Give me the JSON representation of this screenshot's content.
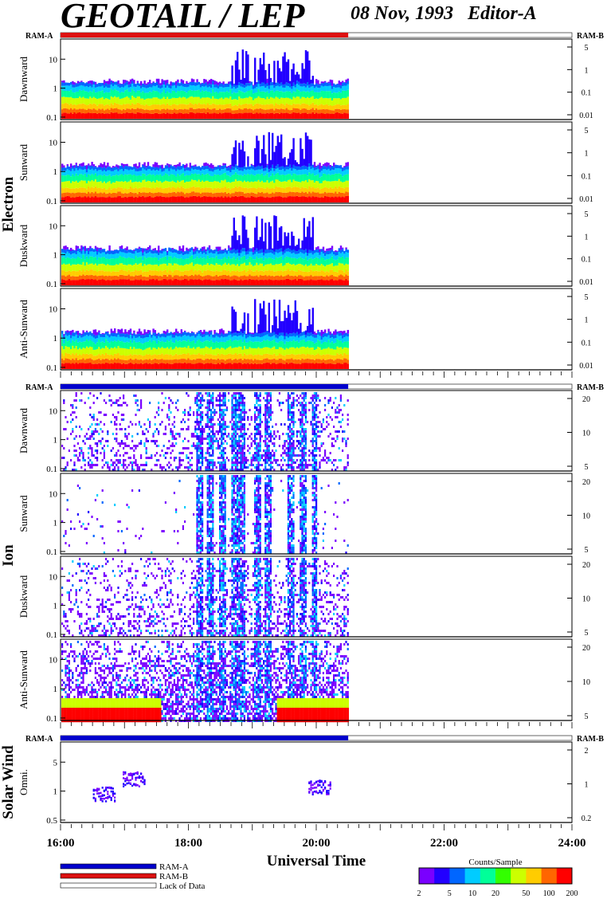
{
  "header": {
    "title": "GEOTAIL / LEP",
    "date": "08 Nov, 1993",
    "editor": "Editor-A"
  },
  "colors": {
    "ram_a": "#0000cc",
    "ram_b": "#dd1111",
    "lack_of_data": "#ffffff",
    "scale": [
      "#7a00ff",
      "#2200ff",
      "#0066ff",
      "#00ccff",
      "#00ff99",
      "#33ff00",
      "#ccff00",
      "#ffcc00",
      "#ff6600",
      "#ff0000"
    ]
  },
  "chart_data": {
    "type": "heatmap",
    "xlabel": "Universal Time",
    "x_range": [
      "16:00",
      "24:00"
    ],
    "x_ticks": [
      "16:00",
      "18:00",
      "20:00",
      "22:00",
      "24:00"
    ],
    "data_end": "20:30",
    "ram_label_left": "RAM-A",
    "ram_label_right": "RAM-B",
    "groups": [
      {
        "name": "Electron",
        "ram_bar": "ram_b",
        "panels": [
          {
            "name": "Dawnward",
            "left_ticks": [
              "10",
              "1",
              "0.1"
            ],
            "right_ticks": [
              "5",
              "1",
              "0.1",
              "0.01"
            ],
            "bands": "electron"
          },
          {
            "name": "Sunward",
            "left_ticks": [
              "10",
              "1",
              "0.1"
            ],
            "right_ticks": [
              "5",
              "1",
              "0.1",
              "0.01"
            ],
            "bands": "electron"
          },
          {
            "name": "Duskward",
            "left_ticks": [
              "10",
              "1",
              "0.1"
            ],
            "right_ticks": [
              "5",
              "1",
              "0.1",
              "0.01"
            ],
            "bands": "electron"
          },
          {
            "name": "Anti-Sunward",
            "left_ticks": [
              "10",
              "1",
              "0.1"
            ],
            "right_ticks": [
              "5",
              "1",
              "0.1",
              "0.01"
            ],
            "bands": "electron"
          }
        ]
      },
      {
        "name": "Ion",
        "ram_bar": "ram_a",
        "panels": [
          {
            "name": "Dawnward",
            "left_ticks": [
              "10",
              "1",
              "0.1"
            ],
            "right_ticks": [
              "20",
              "10",
              "5"
            ],
            "bands": "ion"
          },
          {
            "name": "Sunward",
            "left_ticks": [
              "10",
              "1",
              "0.1"
            ],
            "right_ticks": [
              "20",
              "10",
              "5"
            ],
            "bands": "ion-sparse"
          },
          {
            "name": "Duskward",
            "left_ticks": [
              "10",
              "1",
              "0.1"
            ],
            "right_ticks": [
              "20",
              "10",
              "5"
            ],
            "bands": "ion"
          },
          {
            "name": "Anti-Sunward",
            "left_ticks": [
              "10",
              "1",
              "0.1"
            ],
            "right_ticks": [
              "20",
              "10",
              "5"
            ],
            "bands": "ion-dense"
          }
        ]
      },
      {
        "name": "Solar Wind",
        "ram_bar": "ram_a",
        "panels": [
          {
            "name": "Omni.",
            "left_ticks": [
              "5",
              "1",
              "0.5"
            ],
            "right_ticks": [
              "2",
              "1",
              "0.2"
            ],
            "bands": "sw"
          }
        ]
      }
    ],
    "legend": {
      "items": [
        {
          "label": "RAM-A",
          "color": "ram_a"
        },
        {
          "label": "RAM-B",
          "color": "ram_b"
        },
        {
          "label": "Lack of Data",
          "color": "lack_of_data"
        }
      ]
    },
    "colorbar": {
      "title": "Counts/Sample",
      "ticks": [
        "2",
        "5",
        "10",
        "20",
        "50",
        "100",
        "200"
      ],
      "scale": "log",
      "range": [
        2,
        200
      ]
    }
  }
}
